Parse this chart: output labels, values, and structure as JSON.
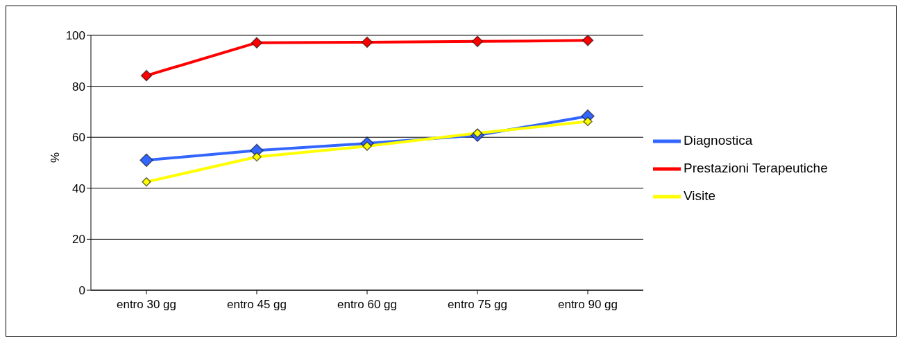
{
  "chart_data": {
    "type": "line",
    "ylabel": "%",
    "categories": [
      "entro 30 gg",
      "entro 45 gg",
      "entro 60 gg",
      "entro 75 gg",
      "entro 90 gg"
    ],
    "series": [
      {
        "name": "Diagnostica",
        "color": "#3366ff",
        "values": [
          51.0,
          54.8,
          57.6,
          60.8,
          68.3
        ]
      },
      {
        "name": "Prestazioni Terapeutiche",
        "color": "#ff0000",
        "values": [
          84.2,
          97.1,
          97.3,
          97.6,
          98.0
        ]
      },
      {
        "name": "Visite",
        "color": "#ffff00",
        "values": [
          42.5,
          52.3,
          56.5,
          61.6,
          66.2
        ]
      }
    ],
    "ylim": [
      0,
      100
    ],
    "yticks": [
      0,
      20,
      40,
      60,
      80,
      100
    ],
    "grid": "y",
    "legend": "right",
    "marker": "diamond",
    "line_style": "solid"
  }
}
